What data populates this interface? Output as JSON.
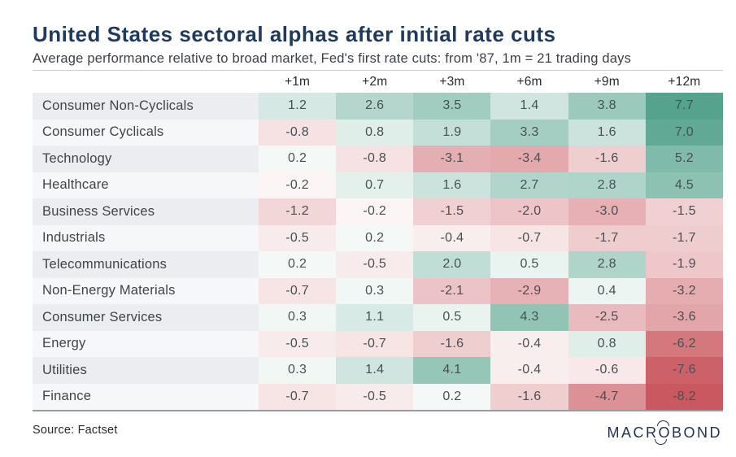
{
  "header": {
    "title": "United States sectoral alphas after initial rate cuts",
    "subtitle": "Average performance relative to broad market, Fed's first rate cuts: from '87, 1m = 21 trading days"
  },
  "chart_data": {
    "type": "heatmap",
    "title": "United States sectoral alphas after initial rate cuts",
    "subtitle": "Average performance relative to broad market, Fed's first rate cuts: from '87, 1m = 21 trading days",
    "columns": [
      "+1m",
      "+2m",
      "+3m",
      "+6m",
      "+9m",
      "+12m"
    ],
    "rows": [
      {
        "sector": "Consumer Non-Cyclicals",
        "values": [
          1.2,
          2.6,
          3.5,
          1.4,
          3.8,
          7.7
        ]
      },
      {
        "sector": "Consumer Cyclicals",
        "values": [
          -0.8,
          0.8,
          1.9,
          3.3,
          1.6,
          7.0
        ]
      },
      {
        "sector": "Technology",
        "values": [
          0.2,
          -0.8,
          -3.1,
          -3.4,
          -1.6,
          5.2
        ]
      },
      {
        "sector": "Healthcare",
        "values": [
          -0.2,
          0.7,
          1.6,
          2.7,
          2.8,
          4.5
        ]
      },
      {
        "sector": "Business Services",
        "values": [
          -1.2,
          -0.2,
          -1.5,
          -2.0,
          -3.0,
          -1.5
        ]
      },
      {
        "sector": "Industrials",
        "values": [
          -0.5,
          0.2,
          -0.4,
          -0.7,
          -1.7,
          -1.7
        ]
      },
      {
        "sector": "Telecommunications",
        "values": [
          0.2,
          -0.5,
          2.0,
          0.5,
          2.8,
          -1.9
        ]
      },
      {
        "sector": "Non-Energy Materials",
        "values": [
          -0.7,
          0.3,
          -2.1,
          -2.9,
          0.4,
          -3.2
        ]
      },
      {
        "sector": "Consumer Services",
        "values": [
          0.3,
          1.1,
          0.5,
          4.3,
          -2.5,
          -3.6
        ]
      },
      {
        "sector": "Energy",
        "values": [
          -0.5,
          -0.7,
          -1.6,
          -0.4,
          0.8,
          -6.2
        ]
      },
      {
        "sector": "Utilities",
        "values": [
          0.3,
          1.4,
          4.1,
          -0.4,
          -0.6,
          -7.6
        ]
      },
      {
        "sector": "Finance",
        "values": [
          -0.7,
          -0.5,
          0.2,
          -1.6,
          -4.7,
          -8.2
        ]
      }
    ],
    "value_decimals": 1,
    "color_scale": {
      "type": "diverging",
      "neutral": "#ffffff",
      "positive_end": "#55a38d",
      "negative_end": "#ca5860",
      "domain": [
        -8.2,
        7.7
      ],
      "gamma": 0.75
    },
    "row_stripe_colors": [
      "#ebedf0",
      "#f6f7f8"
    ],
    "legend": "none",
    "grid": "off"
  },
  "colors": {
    "title_text": "#1f3a5f",
    "subtitle_text": "#3c3f44",
    "header_text": "#26292e",
    "cell_text": "#494f53",
    "top_rule": "#c9cdd1",
    "bottom_rule": "#959ba0",
    "brand_navy": "#1d3356"
  },
  "footer": {
    "source": "Source: Factset",
    "brand": {
      "prefix": "MACR",
      "o": "O",
      "suffix": "BOND"
    }
  }
}
